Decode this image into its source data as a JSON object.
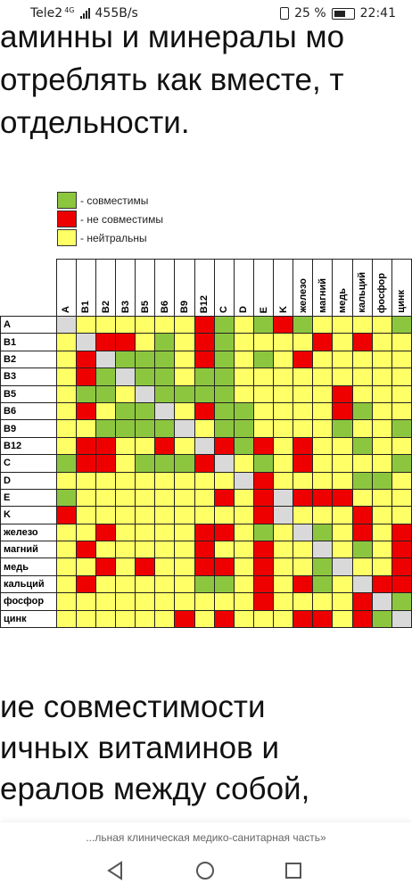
{
  "status_bar": {
    "carrier": "Tele2",
    "network": "4G",
    "speed": "455B/s",
    "battery": "25 %",
    "time": "22:41"
  },
  "article_top_lines": [
    "аминны и минералы мо",
    "отреблять как вместе, т",
    "отдельности."
  ],
  "legend": [
    {
      "color": "#8cc63f",
      "label": "- совместимы"
    },
    {
      "color": "#ee0000",
      "label": "- не совместимы"
    },
    {
      "color": "#ffff66",
      "label": "- нейтральны"
    }
  ],
  "table": {
    "columns": [
      "A",
      "B1",
      "B2",
      "B3",
      "B5",
      "B6",
      "B9",
      "B12",
      "C",
      "D",
      "E",
      "K",
      "железо",
      "магний",
      "медь",
      "кальций",
      "фосфор",
      "цинк"
    ],
    "rows": [
      {
        "label": "A",
        "cells": "nyyyyyyrgygrgyyyyg"
      },
      {
        "label": "B1",
        "cells": "ynrrygyrgyyyyryryy"
      },
      {
        "label": "B2",
        "cells": "yrngggyrgygyryyyyy"
      },
      {
        "label": "B3",
        "cells": "yrgnggyggyyyyyyyyy"
      },
      {
        "label": "B5",
        "cells": "yggynggggyyyyyryyy"
      },
      {
        "label": "B6",
        "cells": "yryggnyrggyyyyrgyy"
      },
      {
        "label": "B9",
        "cells": "yyggggnyggyyyygyyg"
      },
      {
        "label": "B12",
        "cells": "yrryyrynrgryryygyy"
      },
      {
        "label": "C",
        "cells": "grrygggrnygyryyyyg"
      },
      {
        "label": "D",
        "cells": "yyyyyyyyynryyyyggy"
      },
      {
        "label": "E",
        "cells": "gyyyyyyyryrnrrryyy"
      },
      {
        "label": "K",
        "cells": "ryyyyyyyyyrnyyyryy"
      },
      {
        "label": "железо",
        "cells": "yyryyyyrrygyngyryr"
      },
      {
        "label": "магний",
        "cells": "yryyyyyryyryynygyr"
      },
      {
        "label": "медь",
        "cells": "yyryryyrryryygnyyr"
      },
      {
        "label": "кальций",
        "cells": "yryyyyyggyryrgynrr"
      },
      {
        "label": "фосфор",
        "cells": "yyyyyyyyyyryyyyrng"
      },
      {
        "label": "цинк",
        "cells": "yyyyyyryryyyrryrgn"
      }
    ]
  },
  "article_bottom_lines": [
    "ие совместимости",
    "ичных витаминов и",
    "ералов между собой,"
  ],
  "footer_source": "...льная клиническая медико-санитарная часть»",
  "nav": {
    "back_icon": "triangle-back-icon",
    "home_icon": "circle-home-icon",
    "recent_icon": "square-recent-icon"
  },
  "colors": {
    "compatible": "#8cc63f",
    "incompatible": "#ee0000",
    "neutral": "#ffff66",
    "diagonal": "#d9d9d9"
  }
}
